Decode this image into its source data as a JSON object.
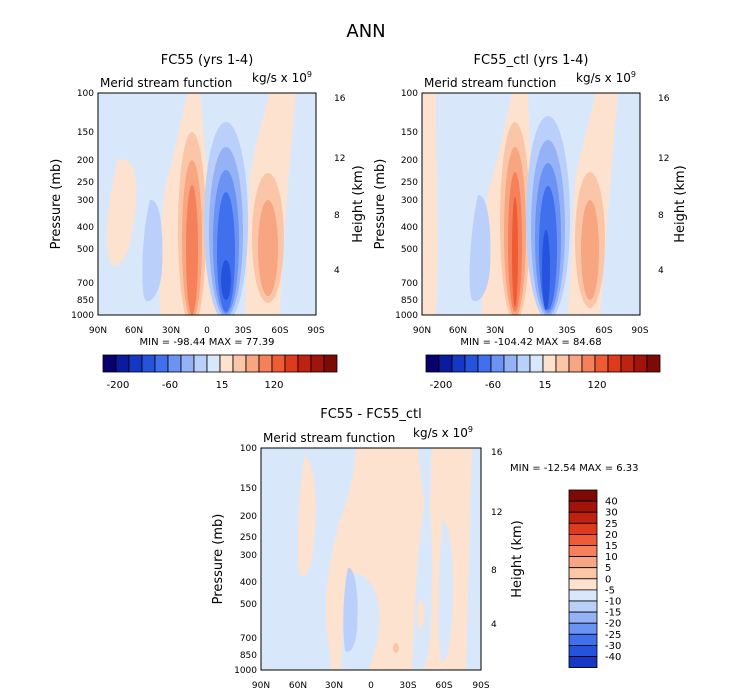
{
  "figure": {
    "title": "ANN"
  },
  "colors": {
    "n9": "#08006e",
    "n8": "#0c1a9e",
    "n7": "#1537c5",
    "n6": "#2553de",
    "n5": "#4070ee",
    "n4": "#6b93f4",
    "n3": "#95b2f7",
    "n2": "#bad0fa",
    "n1": "#d9e7fb",
    "p1": "#fde2cf",
    "p2": "#fbc6a8",
    "p3": "#f8a582",
    "p4": "#f5805a",
    "p5": "#ef5b34",
    "p6": "#dd3b1c",
    "p7": "#c02211",
    "p8": "#a1130b",
    "p9": "#7e0a06"
  },
  "chart_data": [
    {
      "type": "heatmap",
      "title": "FC55 (yrs 1-4)",
      "subtitle_left": "Merid stream function",
      "subtitle_right": "kg/s x 10",
      "subtitle_exp": "9",
      "ylabel": "Pressure (mb)",
      "ylabel_right": "Height (km)",
      "x_ticks": [
        "90N",
        "60N",
        "30N",
        "0",
        "30S",
        "60S",
        "90S"
      ],
      "y_ticks": [
        "100",
        "150",
        "200",
        "250",
        "300",
        "400",
        "500",
        "700",
        "850",
        "1000"
      ],
      "y_ticks_right": [
        "16",
        "12",
        "8",
        "4"
      ],
      "min_max": "MIN = -98.44   MAX =  77.39",
      "colorbar_labels": [
        "-200",
        "-60",
        "15",
        "120"
      ]
    },
    {
      "type": "heatmap",
      "title": "FC55_ctl (yrs 1-4)",
      "subtitle_left": "Merid stream function",
      "subtitle_right": "kg/s x 10",
      "subtitle_exp": "9",
      "ylabel": "Pressure (mb)",
      "ylabel_right": "Height (km)",
      "x_ticks": [
        "90N",
        "60N",
        "30N",
        "0",
        "30S",
        "60S",
        "90S"
      ],
      "y_ticks": [
        "100",
        "150",
        "200",
        "250",
        "300",
        "400",
        "500",
        "700",
        "850",
        "1000"
      ],
      "y_ticks_right": [
        "16",
        "12",
        "8",
        "4"
      ],
      "min_max": "MIN = -104.42   MAX =  84.68",
      "colorbar_labels": [
        "-200",
        "-60",
        "15",
        "120"
      ]
    },
    {
      "type": "heatmap",
      "title": "FC55 - FC55_ctl",
      "subtitle_left": "Merid stream function",
      "subtitle_right": "kg/s x 10",
      "subtitle_exp": "9",
      "ylabel": "Pressure (mb)",
      "ylabel_right": "Height (km)",
      "x_ticks": [
        "90N",
        "60N",
        "30N",
        "0",
        "30S",
        "60S",
        "90S"
      ],
      "y_ticks": [
        "100",
        "150",
        "200",
        "250",
        "300",
        "400",
        "500",
        "700",
        "850",
        "1000"
      ],
      "y_ticks_right": [
        "16",
        "12",
        "8",
        "4"
      ],
      "min_max": "MIN = -12.54   MAX =   6.33",
      "colorbar_labels": [
        "40",
        "30",
        "25",
        "20",
        "15",
        "10",
        "5",
        "0",
        "-5",
        "-10",
        "-15",
        "-20",
        "-25",
        "-30",
        "-40"
      ]
    }
  ]
}
